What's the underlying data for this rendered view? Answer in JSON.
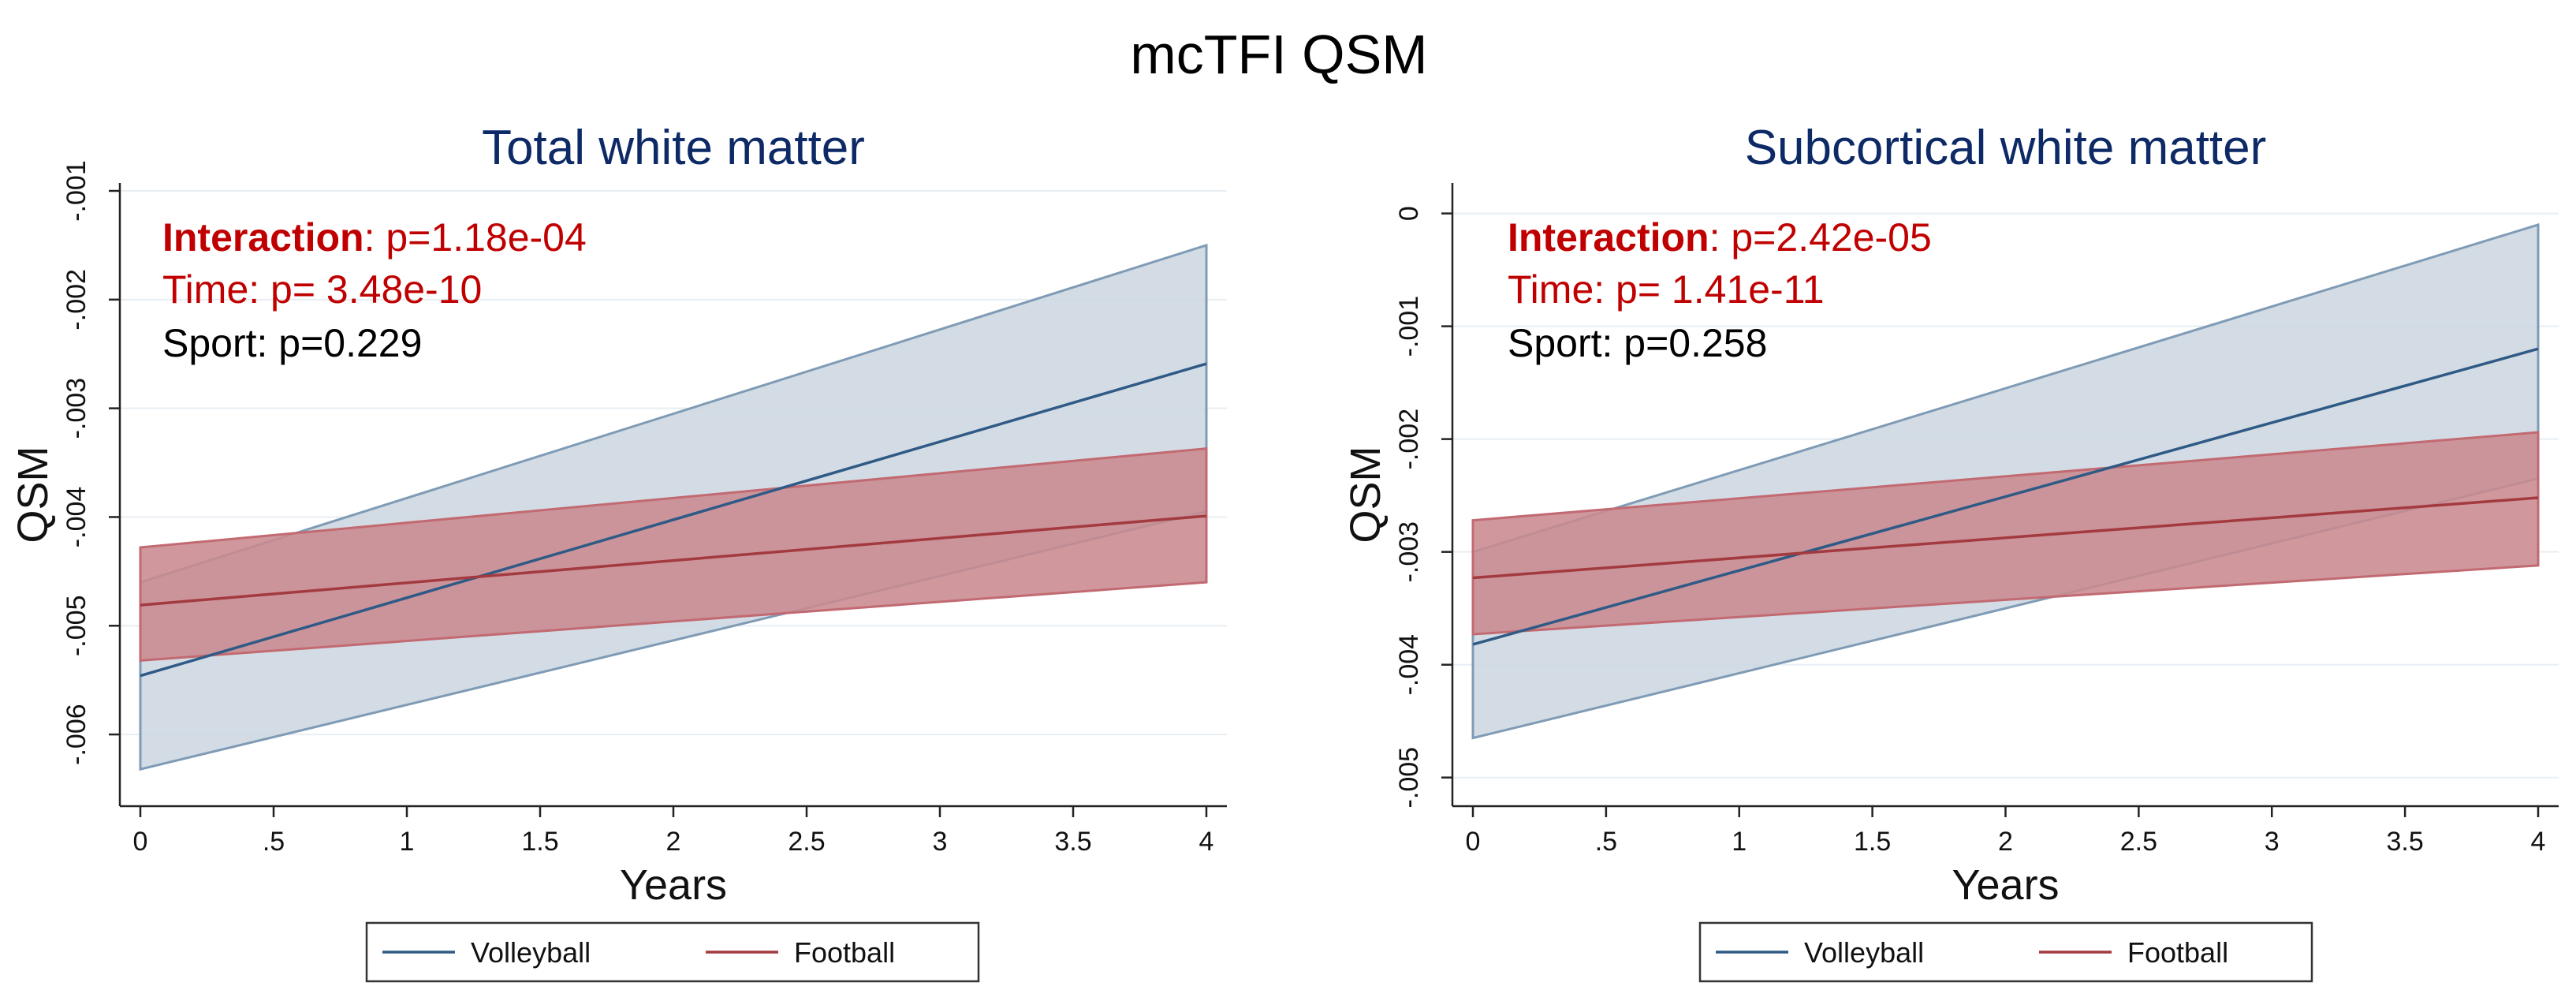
{
  "figure_title": "mcTFI QSM",
  "chart_data": [
    {
      "type": "line",
      "title": "Total white matter",
      "xlabel": "Years",
      "ylabel": "QSM",
      "xlim": [
        0,
        4
      ],
      "ylim": [
        -0.0065,
        -0.001
      ],
      "x_ticks": [
        0,
        0.5,
        1,
        1.5,
        2,
        2.5,
        3,
        3.5,
        4
      ],
      "x_tick_labels": [
        "0",
        ".5",
        "1",
        "1.5",
        "2",
        "2.5",
        "3",
        "3.5",
        "4"
      ],
      "y_ticks": [
        -0.006,
        -0.005,
        -0.004,
        -0.003,
        -0.002,
        -0.001
      ],
      "y_tick_labels": [
        "-.006",
        "-.005",
        "-.004",
        "-.003",
        "-.002",
        "-.001"
      ],
      "grid": true,
      "series": [
        {
          "name": "Volleyball",
          "color": "#2f5a85",
          "fill": "#cbd6e0",
          "edge": "#7f9bb5",
          "x": [
            0,
            4
          ],
          "values": [
            -0.00546,
            -0.00259
          ],
          "lower": [
            -0.00632,
            -0.00395
          ],
          "upper": [
            -0.0046,
            -0.0015
          ]
        },
        {
          "name": "Football",
          "color": "#a33a3f",
          "fill": "#c98a90",
          "edge": "#c26a72",
          "x": [
            0,
            4
          ],
          "values": [
            -0.00481,
            -0.00399
          ],
          "lower": [
            -0.00532,
            -0.0046
          ],
          "upper": [
            -0.00428,
            -0.00337
          ]
        }
      ],
      "annotations": [
        {
          "label": "Interaction",
          "text": ": p=1.18e-04",
          "color": "#c00000",
          "bold_label": true
        },
        {
          "label": "",
          "text": "Time: p= 3.48e-10",
          "color": "#c00000",
          "bold_label": false
        },
        {
          "label": "",
          "text": "Sport: p=0.229",
          "color": "#000000",
          "bold_label": false
        }
      ],
      "legend": [
        "Volleyball",
        "Football"
      ]
    },
    {
      "type": "line",
      "title": "Subcortical white matter",
      "xlabel": "Years",
      "ylabel": "QSM",
      "xlim": [
        0,
        4
      ],
      "ylim": [
        -0.0051,
        0.0002
      ],
      "x_ticks": [
        0,
        0.5,
        1,
        1.5,
        2,
        2.5,
        3,
        3.5,
        4
      ],
      "x_tick_labels": [
        "0",
        ".5",
        "1",
        "1.5",
        "2",
        "2.5",
        "3",
        "3.5",
        "4"
      ],
      "y_ticks": [
        -0.005,
        -0.004,
        -0.003,
        -0.002,
        -0.001,
        0
      ],
      "y_tick_labels": [
        "-.005",
        "-.004",
        "-.003",
        "-.002",
        "-.001",
        "0"
      ],
      "grid": true,
      "series": [
        {
          "name": "Volleyball",
          "color": "#2f5a85",
          "fill": "#cbd6e0",
          "edge": "#7f9bb5",
          "x": [
            0,
            4
          ],
          "values": [
            -0.00382,
            -0.0012
          ],
          "lower": [
            -0.00465,
            -0.00235
          ],
          "upper": [
            -0.003,
            -0.0001
          ]
        },
        {
          "name": "Football",
          "color": "#a33a3f",
          "fill": "#c98a90",
          "edge": "#c26a72",
          "x": [
            0,
            4
          ],
          "values": [
            -0.00323,
            -0.00252
          ],
          "lower": [
            -0.00373,
            -0.00312
          ],
          "upper": [
            -0.00272,
            -0.00194
          ]
        }
      ],
      "annotations": [
        {
          "label": "Interaction",
          "text": ": p=2.42e-05",
          "color": "#c00000",
          "bold_label": true
        },
        {
          "label": "",
          "text": "Time: p= 1.41e-11",
          "color": "#c00000",
          "bold_label": false
        },
        {
          "label": "",
          "text": "Sport: p=0.258",
          "color": "#000000",
          "bold_label": false
        }
      ],
      "legend": [
        "Volleyball",
        "Football"
      ]
    }
  ]
}
